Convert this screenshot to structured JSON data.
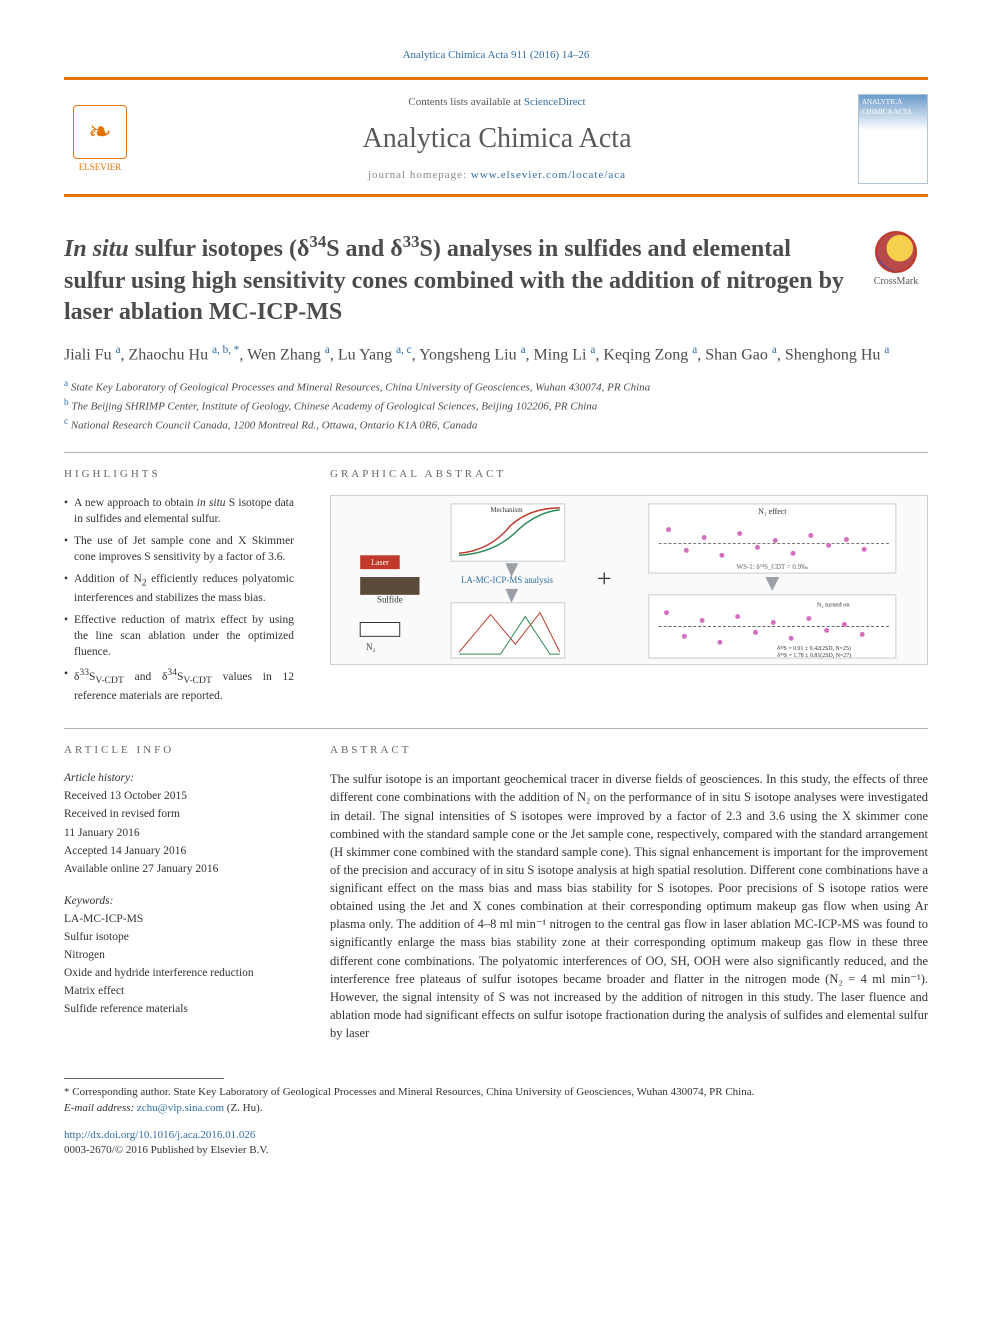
{
  "citation": "Analytica Chimica Acta 911 (2016) 14–26",
  "header": {
    "publisher_label": "ELSEVIER",
    "contents_prefix": "Contents lists available at ",
    "contents_link": "ScienceDirect",
    "journal_name": "Analytica Chimica Acta",
    "homepage_prefix": "journal homepage: ",
    "homepage_url": "www.elsevier.com/locate/aca",
    "cover_label": "ANALYTICA CHIMICA ACTA"
  },
  "crossmark_label": "CrossMark",
  "title_html": "<em>In situ</em> sulfur isotopes (δ<sup class='s'>34</sup>S and δ<sup class='s'>33</sup>S) analyses in sulfides and elemental sulfur using high sensitivity cones combined with the addition of nitrogen by laser ablation MC-ICP-MS",
  "authors_html": "Jiali Fu <sup>a</sup>, Zhaochu Hu <sup>a, b, *</sup>, Wen Zhang <sup>a</sup>, Lu Yang <sup>a, c</sup>, Yongsheng Liu <sup>a</sup>, Ming Li <sup>a</sup>, Keqing Zong <sup>a</sup>, Shan Gao <sup>a</sup>, Shenghong Hu <sup>a</sup>",
  "affiliations": [
    {
      "marker": "a",
      "text": "State Key Laboratory of Geological Processes and Mineral Resources, China University of Geosciences, Wuhan 430074, PR China"
    },
    {
      "marker": "b",
      "text": "The Beijing SHRIMP Center, Institute of Geology, Chinese Academy of Geological Sciences, Beijing 102206, PR China"
    },
    {
      "marker": "c",
      "text": "National Research Council Canada, 1200 Montreal Rd., Ottawa, Ontario K1A 0R6, Canada"
    }
  ],
  "highlights_heading": "HIGHLIGHTS",
  "highlights": [
    "A new approach to obtain <em>in situ</em> S isotope data in sulfides and elemental sulfur.",
    "The use of Jet sample cone and X Skimmer cone improves S sensitivity by a factor of 3.6.",
    "Addition of N<sub>2</sub> efficiently reduces polyatomic interferences and stabilizes the mass bias.",
    "Effective reduction of matrix effect by using the line scan ablation under the optimized fluence.",
    "δ<sup>33</sup>S<sub>V-CDT</sub> and δ<sup>34</sup>S<sub>V-CDT</sub> values in 12 reference materials are reported."
  ],
  "graphical_heading": "GRAPHICAL ABSTRACT",
  "graphical": {
    "left_label1": "Laser",
    "left_label2": "Sulfide",
    "left_label3": "N₂",
    "center_label": "LA-MC-ICP-MS analysis",
    "chart_top": {
      "type": "line",
      "title": "Mechanism",
      "xlabel": "Make-up gas flow",
      "ylabel": "Sulfur sensitivity",
      "series": [
        "Ar only",
        "Ar+N₂"
      ],
      "colors": [
        "#c0392b",
        "#2e8b57"
      ]
    },
    "chart_bottom": {
      "type": "line",
      "xlabel": "mass number",
      "ylabel": "Intensity",
      "series": [
        "Ar only",
        "Ar+N₂"
      ],
      "colors": [
        "#c0392b",
        "#2e8b57"
      ]
    },
    "chart_right_top": {
      "type": "scatter",
      "title": "N₂ effect",
      "ylabel": "δ³⁴S_CDT (‰)",
      "ref_line": "WS-1: δ³⁴S_CDT = 0.9‰",
      "marker_color": "#d46fc0",
      "grid_color": "#e0e0e0"
    },
    "chart_right_bottom": {
      "type": "scatter",
      "ylabel": "δ³³S_CDT (‰)",
      "annotations": [
        "N₂ turned on",
        "δ³³S = 0.91 ± 0.42(2SD, N=25)",
        "δ³⁴S = 1.78 ± 0.81(2SD, N=27)"
      ],
      "marker_color": "#d46fc0"
    },
    "arrow_color": "#9aa0a6",
    "plus_color": "#333333"
  },
  "article_info_heading": "ARTICLE INFO",
  "article_history_head": "Article history:",
  "article_history": [
    "Received 13 October 2015",
    "Received in revised form",
    "11 January 2016",
    "Accepted 14 January 2016",
    "Available online 27 January 2016"
  ],
  "keywords_head": "Keywords:",
  "keywords": [
    "LA-MC-ICP-MS",
    "Sulfur isotope",
    "Nitrogen",
    "Oxide and hydride interference reduction",
    "Matrix effect",
    "Sulfide reference materials"
  ],
  "abstract_heading": "ABSTRACT",
  "abstract_text": "The sulfur isotope is an important geochemical tracer in diverse fields of geosciences. In this study, the effects of three different cone combinations with the addition of N₂ on the performance of in situ S isotope analyses were investigated in detail. The signal intensities of S isotopes were improved by a factor of 2.3 and 3.6 using the X skimmer cone combined with the standard sample cone or the Jet sample cone, respectively, compared with the standard arrangement (H skimmer cone combined with the standard sample cone). This signal enhancement is important for the improvement of the precision and accuracy of in situ S isotope analysis at high spatial resolution. Different cone combinations have a significant effect on the mass bias and mass bias stability for S isotopes. Poor precisions of S isotope ratios were obtained using the Jet and X cones combination at their corresponding optimum makeup gas flow when using Ar plasma only. The addition of 4–8 ml min⁻¹ nitrogen to the central gas flow in laser ablation MC-ICP-MS was found to significantly enlarge the mass bias stability zone at their corresponding optimum makeup gas flow in these three different cone combinations. The polyatomic interferences of OO, SH, OOH were also significantly reduced, and the interference free plateaus of sulfur isotopes became broader and flatter in the nitrogen mode (N₂ = 4 ml min⁻¹). However, the signal intensity of S was not increased by the addition of nitrogen in this study. The laser fluence and ablation mode had significant effects on sulfur isotope fractionation during the analysis of sulfides and elemental sulfur by laser",
  "footnote": {
    "corresponding": "* Corresponding author. State Key Laboratory of Geological Processes and Mineral Resources, China University of Geosciences, Wuhan 430074, PR China.",
    "email_label": "E-mail address:",
    "email": "zchu@vip.sina.com",
    "email_suffix": "(Z. Hu)."
  },
  "doi": {
    "url": "http://dx.doi.org/10.1016/j.aca.2016.01.026",
    "copyright": "0003-2670/© 2016 Published by Elsevier B.V."
  },
  "colors": {
    "accent_orange": "#e57200",
    "link_blue": "#2e6da4",
    "text_gray": "#4c4c4c",
    "rule_gray": "#b3b3b3"
  }
}
